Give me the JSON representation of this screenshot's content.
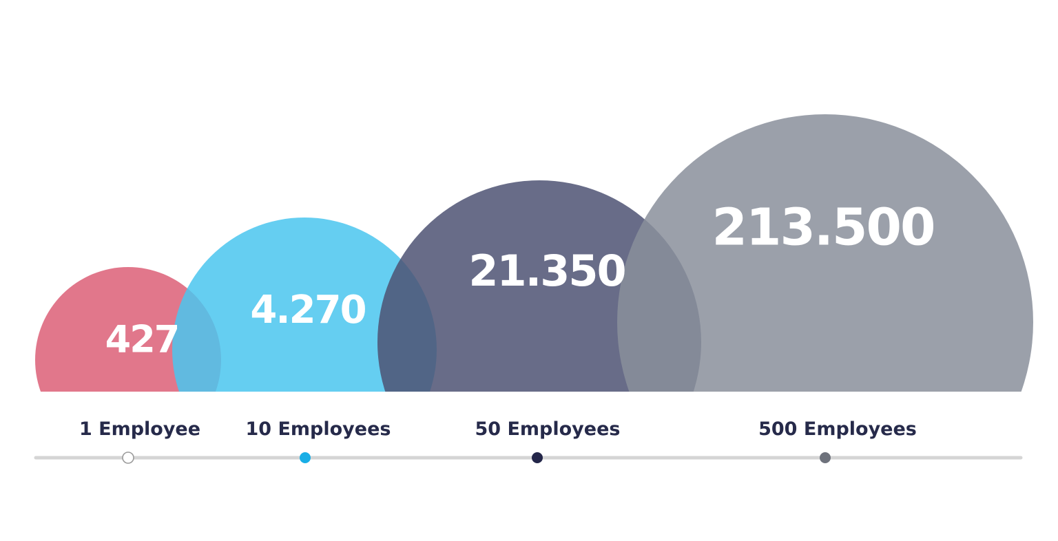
{
  "chart_data": {
    "type": "bubble",
    "categories": [
      "1 Employee",
      "10 Employees",
      "50 Employees",
      "500 Employees"
    ],
    "values": [
      "427",
      "4.270",
      "21.350",
      "213.500"
    ],
    "numeric_values": [
      427,
      4270,
      21350,
      213500
    ],
    "colors": [
      "#dc5f77",
      "#4ac5ee",
      "#4e5273",
      "#8a8f9b"
    ],
    "marker_colors": [
      "#ffffff",
      "#19aee6",
      "#232649",
      "#6e727c"
    ],
    "axis_color": "#d5d5d5",
    "label_color": "#262a4a",
    "value_color": "#ffffff"
  }
}
